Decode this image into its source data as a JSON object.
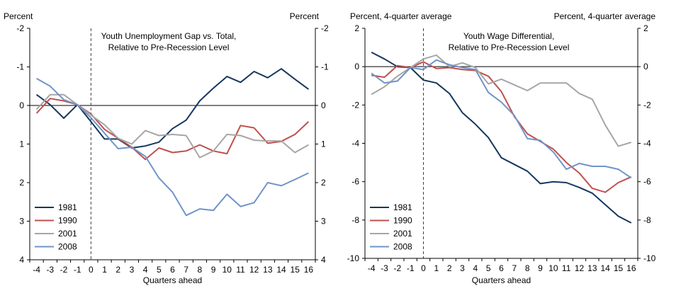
{
  "chart_data": [
    {
      "type": "line",
      "title": [
        "Youth Unemployment Gap vs. Total,",
        "Relative to Pre-Recession Level"
      ],
      "left_unit": "Percent",
      "right_unit": "Percent",
      "xlabel": "Quarters ahead",
      "x": [
        -4,
        -3,
        -2,
        -1,
        0,
        1,
        2,
        3,
        4,
        5,
        6,
        7,
        8,
        9,
        10,
        11,
        12,
        13,
        14,
        15,
        16
      ],
      "xticks": [
        "-4",
        "-3",
        "-2",
        "-1",
        "0",
        "1",
        "2",
        "3",
        "4",
        "5",
        "6",
        "7",
        "8",
        "9",
        "10",
        "11",
        "12",
        "13",
        "14",
        "15",
        "16"
      ],
      "ylim": [
        -2,
        4
      ],
      "y_inverted": true,
      "yticks_left": [
        "-2",
        "-1",
        "0",
        "1",
        "2",
        "3",
        "4"
      ],
      "yticks_right": [
        "-2",
        "-1",
        "0",
        "1",
        "2",
        "3",
        "4"
      ],
      "series": [
        {
          "name": "1981",
          "color": "#17375e",
          "values": [
            -0.28,
            -0.02,
            0.33,
            -0.02,
            0.42,
            0.87,
            0.87,
            1.1,
            1.05,
            0.95,
            0.6,
            0.38,
            -0.12,
            -0.45,
            -0.75,
            -0.6,
            -0.88,
            -0.72,
            -0.95,
            -0.68,
            -0.42
          ]
        },
        {
          "name": "1990",
          "color": "#c0504d",
          "values": [
            0.2,
            -0.18,
            -0.12,
            -0.02,
            0.22,
            0.62,
            0.85,
            1.08,
            1.4,
            1.1,
            1.22,
            1.18,
            1.02,
            1.18,
            1.25,
            0.52,
            0.58,
            0.98,
            0.93,
            0.75,
            0.42
          ]
        },
        {
          "name": "2001",
          "color": "#a6a6a6",
          "values": [
            0.1,
            -0.28,
            -0.28,
            -0.02,
            0.25,
            0.5,
            0.85,
            1.0,
            0.65,
            0.78,
            0.75,
            0.78,
            1.35,
            1.18,
            0.75,
            0.78,
            0.9,
            0.92,
            0.92,
            1.22,
            1.02
          ]
        },
        {
          "name": "2008",
          "color": "#7094c8",
          "values": [
            -0.7,
            -0.5,
            -0.15,
            -0.02,
            0.32,
            0.72,
            1.12,
            1.08,
            1.32,
            1.88,
            2.25,
            2.85,
            2.68,
            2.72,
            2.3,
            2.62,
            2.52,
            2.0,
            2.08,
            1.92,
            1.75
          ]
        }
      ]
    },
    {
      "type": "line",
      "title": [
        "Youth Wage Differential,",
        "Relative to Pre-Recession Level"
      ],
      "left_unit": "Percent, 4-quarter average",
      "right_unit": "Percent, 4-quarter average",
      "xlabel": "Quarters ahead",
      "x": [
        -4,
        -3,
        -2,
        -1,
        0,
        1,
        2,
        3,
        4,
        5,
        6,
        7,
        8,
        9,
        10,
        11,
        12,
        13,
        14,
        15,
        16
      ],
      "xticks": [
        "-4",
        "-3",
        "-2",
        "-1",
        "0",
        "1",
        "2",
        "3",
        "4",
        "5",
        "6",
        "7",
        "8",
        "9",
        "10",
        "11",
        "12",
        "13",
        "14",
        "15",
        "16"
      ],
      "ylim": [
        -10,
        2
      ],
      "y_inverted": false,
      "yticks_left": [
        "-10",
        "-8",
        "-6",
        "-4",
        "-2",
        "0",
        "2"
      ],
      "yticks_right": [
        "-10",
        "-8",
        "-6",
        "-4",
        "-2",
        "0",
        "2"
      ],
      "series": [
        {
          "name": "1981",
          "color": "#17375e",
          "values": [
            0.75,
            0.4,
            0.0,
            -0.05,
            -0.7,
            -0.85,
            -1.4,
            -2.4,
            -3.0,
            -3.7,
            -4.75,
            -5.1,
            -5.45,
            -6.1,
            -6.0,
            -6.05,
            -6.3,
            -6.6,
            -7.2,
            -7.8,
            -8.15
          ]
        },
        {
          "name": "1990",
          "color": "#c0504d",
          "values": [
            -0.45,
            -0.55,
            0.05,
            -0.05,
            0.25,
            -0.1,
            -0.05,
            -0.15,
            -0.2,
            -0.5,
            -1.3,
            -2.6,
            -3.5,
            -3.9,
            -4.3,
            -5.0,
            -5.55,
            -6.35,
            -6.55,
            -6.05,
            -5.75
          ]
        },
        {
          "name": "2001",
          "color": "#a6a6a6",
          "values": [
            -1.45,
            -1.05,
            -0.5,
            -0.05,
            0.4,
            0.6,
            0.0,
            0.2,
            -0.05,
            -0.9,
            -0.65,
            -0.95,
            -1.25,
            -0.85,
            -0.85,
            -0.85,
            -1.4,
            -1.7,
            -3.05,
            -4.15,
            -3.95
          ]
        },
        {
          "name": "2008",
          "color": "#7094c8",
          "values": [
            -0.35,
            -0.85,
            -0.75,
            -0.05,
            -0.15,
            0.35,
            0.1,
            -0.05,
            -0.15,
            -1.35,
            -1.85,
            -2.55,
            -3.75,
            -3.85,
            -4.45,
            -5.35,
            -5.05,
            -5.2,
            -5.2,
            -5.35,
            -5.8
          ]
        }
      ]
    }
  ]
}
